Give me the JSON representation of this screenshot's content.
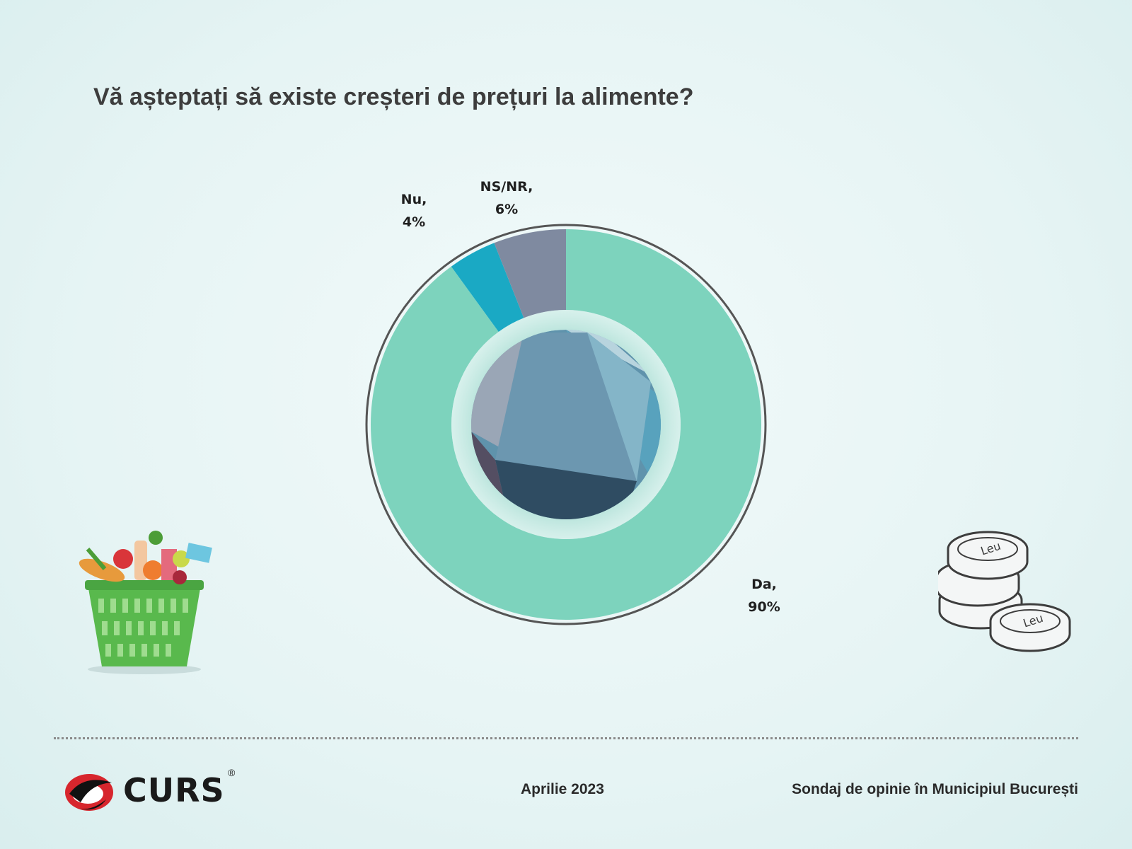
{
  "title": "Vă așteptați să existe creșteri de prețuri la alimente?",
  "chart_data": {
    "type": "pie",
    "title": "Vă așteptați să existe creșteri de prețuri la alimente?",
    "categories": [
      "Da",
      "Nu",
      "NS/NR"
    ],
    "values": [
      90,
      4,
      6
    ],
    "labels": [
      {
        "name": "Da,",
        "value": "90%"
      },
      {
        "name": "Nu,",
        "value": "4%"
      },
      {
        "name": "NS/NR,",
        "value": "6%"
      }
    ],
    "colors": [
      "#7dd3bd",
      "#1aa9c4",
      "#7f8aa0"
    ],
    "legend": "none"
  },
  "illustrations": {
    "basket": "grocery-basket-icon",
    "coins": "leu-coins-icon",
    "coin_text": "Leu"
  },
  "footer": {
    "logo_text": "CURS",
    "logo_registered": "®",
    "date": "Aprilie 2023",
    "survey": "Sondaj de opinie în Municipiul București"
  }
}
